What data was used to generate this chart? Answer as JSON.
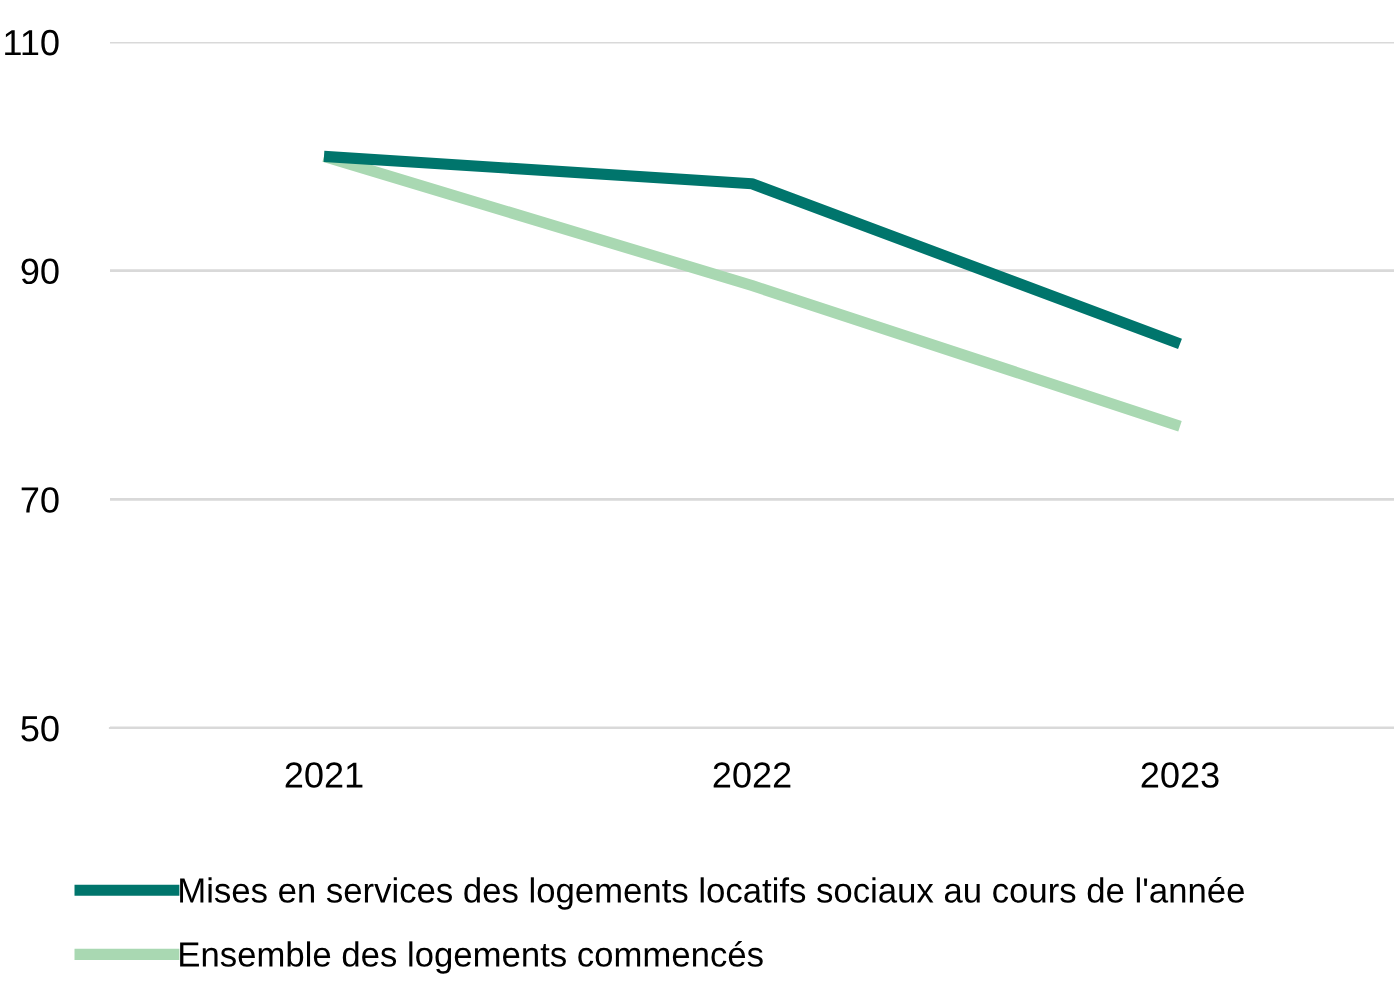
{
  "chart_data": {
    "type": "line",
    "categories": [
      "2021",
      "2022",
      "2023"
    ],
    "series": [
      {
        "name": "Mises en services des logements locatifs sociaux au cours de l'année",
        "color": "#00756c",
        "values": [
          100,
          97.6,
          83.6
        ]
      },
      {
        "name": "Ensemble des logements commencés",
        "color": "#a9d8b2",
        "values": [
          100,
          88.7,
          76.4
        ]
      }
    ],
    "ylim": [
      50,
      110
    ],
    "yticks": [
      50,
      70,
      90,
      110
    ],
    "grid": "y",
    "legend": "bottom",
    "marker": "none",
    "line_style": "solid"
  }
}
